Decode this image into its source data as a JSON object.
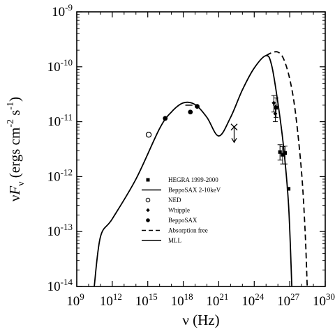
{
  "chart_data": {
    "type": "scatter",
    "xlabel": "ν (Hz)",
    "ylabel": "νF_ν (ergs cm^-2 s^-1)",
    "x_scale": "log",
    "y_scale": "log",
    "xlim": [
      1000000000.0,
      1e+30
    ],
    "ylim": [
      1e-14,
      1e-09
    ],
    "x_ticks": [
      {
        "value": 1000000000.0,
        "base": "10",
        "exp": "9"
      },
      {
        "value": 1000000000000.0,
        "base": "10",
        "exp": "12"
      },
      {
        "value": 1000000000000000.0,
        "base": "10",
        "exp": "15"
      },
      {
        "value": 1e+18,
        "base": "10",
        "exp": "18"
      },
      {
        "value": 1e+21,
        "base": "10",
        "exp": "21"
      },
      {
        "value": 1e+24,
        "base": "10",
        "exp": "24"
      },
      {
        "value": 1e+27,
        "base": "10",
        "exp": "27"
      },
      {
        "value": 1e+30,
        "base": "10",
        "exp": "30"
      }
    ],
    "y_ticks": [
      {
        "value": 1e-14,
        "base": "10",
        "exp": "-14"
      },
      {
        "value": 1e-13,
        "base": "10",
        "exp": "-13"
      },
      {
        "value": 1e-12,
        "base": "10",
        "exp": "-12"
      },
      {
        "value": 1e-11,
        "base": "10",
        "exp": "-11"
      },
      {
        "value": 1e-10,
        "base": "10",
        "exp": "-10"
      },
      {
        "value": 1e-09,
        "base": "10",
        "exp": "-9"
      }
    ],
    "legend_position": "bottom-center",
    "legend": [
      {
        "label": "HEGRA 1999-2000",
        "marker": "square"
      },
      {
        "label": "BeppoSAX 2-10keV",
        "marker": "line"
      },
      {
        "label": "NED",
        "marker": "open-circle"
      },
      {
        "label": "Whipple",
        "marker": "diamond"
      },
      {
        "label": "BeppoSAX",
        "marker": "filled-circle"
      },
      {
        "label": "Absorption free",
        "marker": "dashed-line"
      },
      {
        "label": "MLL",
        "marker": "line"
      }
    ],
    "series": [
      {
        "name": "NED",
        "marker": "open-circle",
        "points": [
          {
            "x": 1200000000000000.0,
            "y": 5.8e-12
          }
        ]
      },
      {
        "name": "BeppoSAX",
        "marker": "filled-circle",
        "points": [
          {
            "x": 3e+16,
            "y": 1.15e-11
          },
          {
            "x": 4e+18,
            "y": 1.5e-11
          },
          {
            "x": 1.5e+19,
            "y": 1.9e-11
          }
        ]
      },
      {
        "name": "BeppoSAX 2-10keV",
        "marker": "segment",
        "segments": [
          {
            "x1": 1.5e+18,
            "x2": 6e+18,
            "y": 2e-11
          }
        ]
      },
      {
        "name": "Whipple",
        "marker": "diamond",
        "points": [
          {
            "x": 4.5e+25,
            "y": 2.2e-11,
            "ylo": 1.5e-11,
            "yhi": 3e-11
          },
          {
            "x": 6e+25,
            "y": 1.4e-11,
            "ylo": 1e-11,
            "yhi": 2e-11
          }
        ]
      },
      {
        "name": "HEGRA 1999-2000",
        "marker": "square",
        "points": [
          {
            "x": 7e+25,
            "y": 1.8e-11,
            "ylo": 1.2e-11,
            "yhi": 2.7e-11
          },
          {
            "x": 1.5e+26,
            "y": 2.8e-12,
            "ylo": 2e-12,
            "yhi": 3.8e-12
          },
          {
            "x": 2.5e+26,
            "y": 2.5e-12,
            "ylo": 1.7e-12,
            "yhi": 3.5e-12
          },
          {
            "x": 4e+26,
            "y": 2.7e-12,
            "ylo": 1.7e-12,
            "yhi": 3.6e-12
          },
          {
            "x": 8e+26,
            "y": 6e-13,
            "ylo": 1e-14,
            "yhi": 1e-14
          }
        ]
      },
      {
        "name": "upper limit",
        "marker": "x-arrow",
        "points": [
          {
            "x": 2e+22,
            "y": 8e-12,
            "arrow_to": 4.2e-12
          }
        ]
      },
      {
        "name": "MLL",
        "marker": "solid-line",
        "points": [
          {
            "x": 30000000000.0,
            "y": 1e-14
          },
          {
            "x": 100000000000.0,
            "y": 8e-14
          },
          {
            "x": 1000000000000.0,
            "y": 1.7e-13
          },
          {
            "x": 100000000000000.0,
            "y": 9e-13
          },
          {
            "x": 1e+16,
            "y": 7.5e-12
          },
          {
            "x": 1e+17,
            "y": 1.5e-11
          },
          {
            "x": 1e+18,
            "y": 2.2e-11
          },
          {
            "x": 1e+19,
            "y": 2.05e-11
          },
          {
            "x": 1e+20,
            "y": 1.2e-11
          },
          {
            "x": 1e+21,
            "y": 5.5e-12
          },
          {
            "x": 1e+22,
            "y": 1.2e-11
          },
          {
            "x": 1e+23,
            "y": 3.8e-11
          },
          {
            "x": 1e+24,
            "y": 9.5e-11
          },
          {
            "x": 1e+25,
            "y": 1.6e-10
          },
          {
            "x": 3e+25,
            "y": 1.05e-10
          },
          {
            "x": 1e+26,
            "y": 2.2e-11
          },
          {
            "x": 3e+26,
            "y": 3.5e-12
          },
          {
            "x": 8e+26,
            "y": 3e-13
          },
          {
            "x": 1.5e+27,
            "y": 1e-14
          }
        ]
      },
      {
        "name": "Absorption free",
        "marker": "dashed-line",
        "points": [
          {
            "x": 1e+25,
            "y": 1.6e-10
          },
          {
            "x": 3e+25,
            "y": 1.8e-10
          },
          {
            "x": 1e+26,
            "y": 1.85e-10
          },
          {
            "x": 3e+26,
            "y": 1.4e-10
          },
          {
            "x": 1e+27,
            "y": 6e-11
          },
          {
            "x": 3e+27,
            "y": 1.5e-11
          },
          {
            "x": 1e+28,
            "y": 1.2e-12
          },
          {
            "x": 2e+28,
            "y": 1e-13
          },
          {
            "x": 3e+28,
            "y": 1e-14
          }
        ]
      }
    ]
  }
}
